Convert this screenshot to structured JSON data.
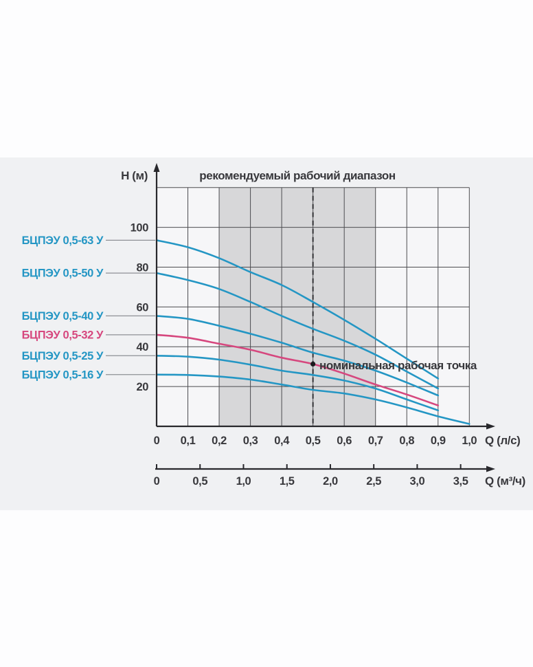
{
  "chart_data": {
    "type": "line",
    "title": "рекомендуемый рабочий диапазон",
    "y_axis": {
      "label": "H (м)",
      "min": 0,
      "max": 120,
      "grid_step": 20,
      "tick_labels": [
        "20",
        "40",
        "60",
        "80",
        "100"
      ],
      "tick_values": [
        20,
        40,
        60,
        80,
        100
      ]
    },
    "x_primary": {
      "label": "Q (л/с)",
      "min": 0,
      "max": 1.0,
      "grid_step": 0.1,
      "tick_labels": [
        "0",
        "0,1",
        "0,2",
        "0,3",
        "0,4",
        "0,5",
        "0,6",
        "0,7",
        "0,8",
        "0,9",
        "1,0"
      ],
      "tick_values": [
        0,
        0.1,
        0.2,
        0.3,
        0.4,
        0.5,
        0.6,
        0.7,
        0.8,
        0.9,
        1.0
      ]
    },
    "x_secondary": {
      "label": "Q (м³/ч)",
      "unit_per_lps": 3.6,
      "tick_labels": [
        "0",
        "0,5",
        "1,0",
        "1,5",
        "2,0",
        "2,5",
        "3,0",
        "3,5"
      ],
      "tick_values": [
        0,
        0.5,
        1.0,
        1.5,
        2.0,
        2.5,
        3.0,
        3.5
      ]
    },
    "recommended_range": {
      "from_lps": 0.2,
      "to_lps": 0.7
    },
    "nominal_point": {
      "q_lps": 0.5,
      "h_m": 31.3,
      "label": "номинальная рабочая точка"
    },
    "grid": true,
    "colors": {
      "blue": "#2496c4",
      "pink": "#d6477e",
      "shade": "#d7d7d9",
      "grid": "#4c4c50",
      "axis": "#28282c",
      "band_bg": "#f0f1f3",
      "plot_bg": "#f6f6f8",
      "connector": "#8d9095",
      "text": "#38383c"
    },
    "series": [
      {
        "name": "БЦПЭУ 0,5-63 У",
        "color": "#2496c4",
        "points": [
          [
            0,
            93.5
          ],
          [
            0.1,
            90
          ],
          [
            0.2,
            84.5
          ],
          [
            0.3,
            77.5
          ],
          [
            0.4,
            71
          ],
          [
            0.5,
            62.5
          ],
          [
            0.6,
            53.5
          ],
          [
            0.7,
            44
          ],
          [
            0.8,
            34
          ],
          [
            0.9,
            24
          ]
        ]
      },
      {
        "name": "БЦПЭУ 0,5-50 У",
        "color": "#2496c4",
        "points": [
          [
            0,
            77
          ],
          [
            0.1,
            73.5
          ],
          [
            0.2,
            69
          ],
          [
            0.3,
            62.5
          ],
          [
            0.4,
            55.5
          ],
          [
            0.5,
            49
          ],
          [
            0.6,
            43
          ],
          [
            0.7,
            36
          ],
          [
            0.8,
            27.5
          ],
          [
            0.9,
            19
          ]
        ]
      },
      {
        "name": "БЦПЭУ 0,5-40 У",
        "color": "#2496c4",
        "points": [
          [
            0,
            55.5
          ],
          [
            0.1,
            54
          ],
          [
            0.2,
            50.5
          ],
          [
            0.3,
            46.5
          ],
          [
            0.4,
            42
          ],
          [
            0.5,
            37
          ],
          [
            0.6,
            33
          ],
          [
            0.7,
            28
          ],
          [
            0.8,
            22
          ],
          [
            0.9,
            15.5
          ]
        ]
      },
      {
        "name": "БЦПЭУ 0,5-32 У",
        "color": "#d6477e",
        "points": [
          [
            0,
            46
          ],
          [
            0.1,
            44.5
          ],
          [
            0.2,
            41.5
          ],
          [
            0.3,
            38.5
          ],
          [
            0.4,
            34.5
          ],
          [
            0.5,
            31.3
          ],
          [
            0.6,
            26.5
          ],
          [
            0.7,
            21
          ],
          [
            0.8,
            16
          ],
          [
            0.9,
            10.5
          ]
        ]
      },
      {
        "name": "БЦПЭУ 0,5-25 У",
        "color": "#2496c4",
        "points": [
          [
            0,
            35.5
          ],
          [
            0.1,
            35
          ],
          [
            0.2,
            33.5
          ],
          [
            0.3,
            31
          ],
          [
            0.4,
            28
          ],
          [
            0.5,
            25.8
          ],
          [
            0.6,
            23
          ],
          [
            0.7,
            19
          ],
          [
            0.8,
            13.5
          ],
          [
            0.9,
            8
          ]
        ]
      },
      {
        "name": "БЦПЭУ 0,5-16 У",
        "color": "#2496c4",
        "points": [
          [
            0,
            26
          ],
          [
            0.1,
            25.8
          ],
          [
            0.2,
            25
          ],
          [
            0.3,
            23.5
          ],
          [
            0.4,
            21
          ],
          [
            0.5,
            18.3
          ],
          [
            0.6,
            16.5
          ],
          [
            0.7,
            13.5
          ],
          [
            0.8,
            9.5
          ],
          [
            0.9,
            5
          ],
          [
            1.0,
            1.2
          ]
        ]
      }
    ]
  }
}
